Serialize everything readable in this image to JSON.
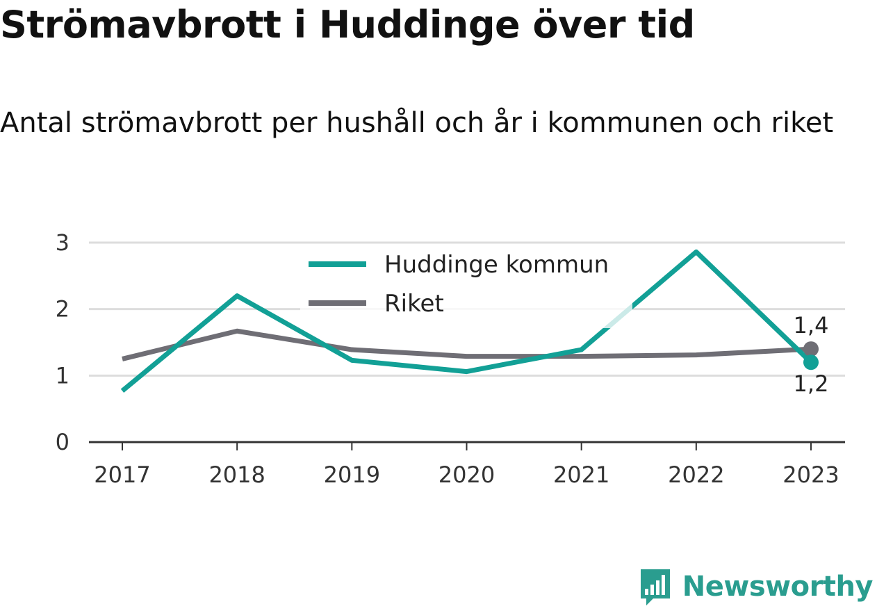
{
  "header": {
    "title": "Strömavbrott i Huddinge över tid",
    "subtitle": "Antal strömavbrott per hushåll och år i kommunen och riket"
  },
  "colors": {
    "huddinge": "#12a096",
    "riket": "#6f6e75",
    "grid": "#dddddd",
    "axis": "#333333",
    "brand": "#2a9d8f"
  },
  "brand": {
    "name": "Newsworthy",
    "icon": "bar-chart-speech-bubble-icon"
  },
  "chart_data": {
    "type": "line",
    "x": [
      "2017",
      "2018",
      "2019",
      "2020",
      "2021",
      "2022",
      "2023"
    ],
    "series": [
      {
        "name": "Huddinge kommun",
        "values": [
          0.77,
          2.2,
          1.23,
          1.06,
          1.39,
          2.86,
          1.2
        ],
        "end_label": "1,2"
      },
      {
        "name": "Riket",
        "values": [
          1.25,
          1.67,
          1.39,
          1.29,
          1.29,
          1.31,
          1.4
        ],
        "end_label": "1,4"
      }
    ],
    "yticks": [
      "0",
      "1",
      "2",
      "3"
    ],
    "ylim": [
      0,
      3
    ],
    "grid": true,
    "legend": "top-center",
    "title": "Strömavbrott i Huddinge över tid",
    "subtitle": "Antal strömavbrott per hushåll och år i kommunen och riket"
  }
}
